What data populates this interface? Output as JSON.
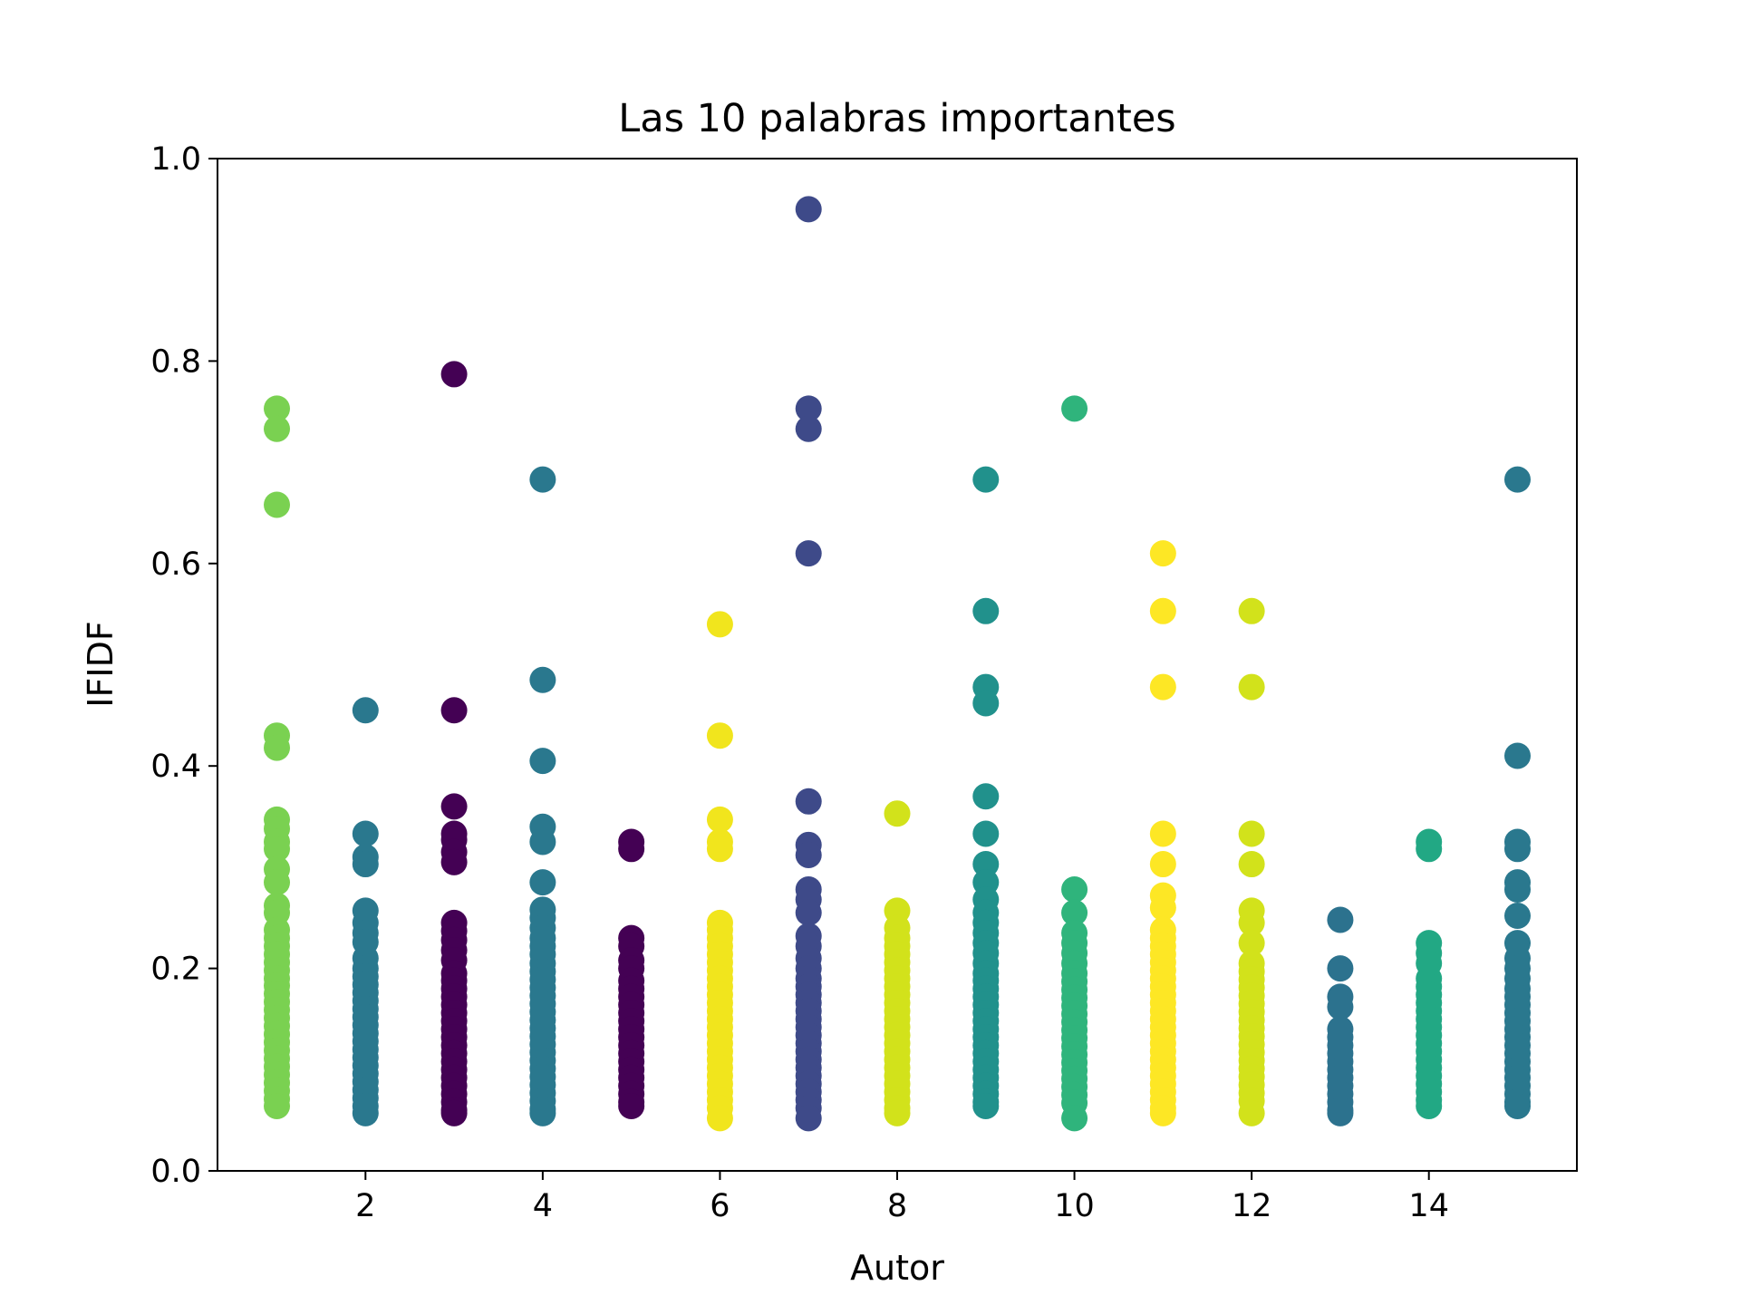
{
  "chart_data": {
    "type": "scatter",
    "title": "Las 10 palabras importantes",
    "xlabel": "Autor",
    "ylabel": "IFIDF",
    "xlim": [
      0.33,
      15.67
    ],
    "ylim": [
      0.0,
      1.0
    ],
    "x_ticks": [
      "2",
      "4",
      "6",
      "8",
      "10",
      "12",
      "14"
    ],
    "y_ticks": [
      "0.0",
      "0.2",
      "0.4",
      "0.6",
      "0.8",
      "1.0"
    ],
    "grid": false,
    "legend": "none",
    "series": [
      {
        "x": 1,
        "color": "#7ad151",
        "values": [
          0.753,
          0.733,
          0.658,
          0.43,
          0.418,
          0.347,
          0.338,
          0.325,
          0.318,
          0.298,
          0.285,
          0.262,
          0.255,
          0.238,
          0.23,
          0.222,
          0.214,
          0.206,
          0.198,
          0.19,
          0.183,
          0.175,
          0.167,
          0.159,
          0.151,
          0.143,
          0.135,
          0.127,
          0.119,
          0.111,
          0.103,
          0.095,
          0.087,
          0.079,
          0.071,
          0.064
        ]
      },
      {
        "x": 2,
        "color": "#2a788e",
        "values": [
          0.455,
          0.333,
          0.31,
          0.303,
          0.257,
          0.245,
          0.235,
          0.226,
          0.21,
          0.2,
          0.192,
          0.184,
          0.176,
          0.168,
          0.16,
          0.152,
          0.144,
          0.136,
          0.128,
          0.12,
          0.112,
          0.104,
          0.096,
          0.088,
          0.08,
          0.072,
          0.064,
          0.057
        ]
      },
      {
        "x": 3,
        "color": "#440154",
        "values": [
          0.787,
          0.455,
          0.36,
          0.333,
          0.327,
          0.315,
          0.305,
          0.245,
          0.237,
          0.228,
          0.218,
          0.208,
          0.195,
          0.188,
          0.18,
          0.172,
          0.164,
          0.156,
          0.148,
          0.14,
          0.132,
          0.124,
          0.116,
          0.108,
          0.1,
          0.092,
          0.084,
          0.076,
          0.068,
          0.06,
          0.057
        ]
      },
      {
        "x": 4,
        "color": "#2a788e",
        "values": [
          0.683,
          0.485,
          0.405,
          0.34,
          0.325,
          0.285,
          0.258,
          0.25,
          0.24,
          0.23,
          0.222,
          0.214,
          0.205,
          0.197,
          0.189,
          0.181,
          0.173,
          0.165,
          0.157,
          0.149,
          0.141,
          0.133,
          0.125,
          0.117,
          0.109,
          0.101,
          0.093,
          0.085,
          0.077,
          0.069,
          0.061,
          0.057
        ]
      },
      {
        "x": 5,
        "color": "#440154",
        "values": [
          0.325,
          0.318,
          0.23,
          0.222,
          0.208,
          0.2,
          0.188,
          0.18,
          0.172,
          0.164,
          0.156,
          0.148,
          0.14,
          0.132,
          0.124,
          0.116,
          0.108,
          0.1,
          0.092,
          0.084,
          0.076,
          0.068,
          0.064
        ]
      },
      {
        "x": 6,
        "color": "#f1e51d",
        "values": [
          0.54,
          0.43,
          0.347,
          0.325,
          0.318,
          0.245,
          0.238,
          0.23,
          0.222,
          0.214,
          0.206,
          0.198,
          0.19,
          0.182,
          0.174,
          0.166,
          0.158,
          0.15,
          0.142,
          0.134,
          0.126,
          0.118,
          0.11,
          0.102,
          0.094,
          0.086,
          0.078,
          0.07,
          0.062,
          0.052
        ]
      },
      {
        "x": 7,
        "color": "#3e4a89",
        "values": [
          0.95,
          0.753,
          0.733,
          0.61,
          0.365,
          0.322,
          0.312,
          0.278,
          0.268,
          0.255,
          0.232,
          0.222,
          0.21,
          0.2,
          0.19,
          0.182,
          0.174,
          0.166,
          0.158,
          0.15,
          0.142,
          0.134,
          0.126,
          0.118,
          0.11,
          0.102,
          0.094,
          0.086,
          0.078,
          0.07,
          0.062,
          0.052
        ]
      },
      {
        "x": 8,
        "color": "#d2e21b",
        "values": [
          0.353,
          0.257,
          0.24,
          0.23,
          0.222,
          0.214,
          0.206,
          0.198,
          0.19,
          0.182,
          0.174,
          0.166,
          0.158,
          0.15,
          0.142,
          0.134,
          0.126,
          0.118,
          0.11,
          0.102,
          0.094,
          0.086,
          0.078,
          0.07,
          0.062,
          0.057
        ]
      },
      {
        "x": 9,
        "color": "#21918c",
        "values": [
          0.683,
          0.553,
          0.478,
          0.462,
          0.37,
          0.333,
          0.303,
          0.285,
          0.268,
          0.255,
          0.245,
          0.235,
          0.225,
          0.215,
          0.205,
          0.195,
          0.188,
          0.18,
          0.172,
          0.164,
          0.156,
          0.148,
          0.14,
          0.132,
          0.124,
          0.116,
          0.108,
          0.1,
          0.092,
          0.084,
          0.076,
          0.068,
          0.064
        ]
      },
      {
        "x": 10,
        "color": "#2fb47c",
        "values": [
          0.753,
          0.278,
          0.255,
          0.235,
          0.225,
          0.215,
          0.205,
          0.195,
          0.187,
          0.179,
          0.171,
          0.163,
          0.155,
          0.147,
          0.139,
          0.131,
          0.123,
          0.115,
          0.107,
          0.099,
          0.091,
          0.083,
          0.075,
          0.067,
          0.052
        ]
      },
      {
        "x": 11,
        "color": "#fde725",
        "values": [
          0.61,
          0.553,
          0.478,
          0.333,
          0.303,
          0.272,
          0.26,
          0.238,
          0.23,
          0.222,
          0.214,
          0.206,
          0.198,
          0.19,
          0.182,
          0.174,
          0.166,
          0.158,
          0.15,
          0.142,
          0.134,
          0.126,
          0.118,
          0.11,
          0.102,
          0.094,
          0.086,
          0.078,
          0.07,
          0.062,
          0.057
        ]
      },
      {
        "x": 12,
        "color": "#d2e21b",
        "values": [
          0.553,
          0.478,
          0.333,
          0.303,
          0.257,
          0.245,
          0.225,
          0.205,
          0.197,
          0.189,
          0.181,
          0.173,
          0.165,
          0.157,
          0.149,
          0.141,
          0.133,
          0.125,
          0.117,
          0.109,
          0.101,
          0.093,
          0.085,
          0.077,
          0.069,
          0.057
        ]
      },
      {
        "x": 13,
        "color": "#2c728e",
        "values": [
          0.248,
          0.2,
          0.172,
          0.162,
          0.14,
          0.132,
          0.124,
          0.116,
          0.108,
          0.1,
          0.092,
          0.084,
          0.076,
          0.068,
          0.06,
          0.057
        ]
      },
      {
        "x": 14,
        "color": "#22a884",
        "values": [
          0.325,
          0.318,
          0.225,
          0.215,
          0.205,
          0.19,
          0.182,
          0.174,
          0.166,
          0.158,
          0.15,
          0.142,
          0.134,
          0.126,
          0.118,
          0.11,
          0.102,
          0.094,
          0.086,
          0.078,
          0.07,
          0.064
        ]
      },
      {
        "x": 15,
        "color": "#2a788e",
        "values": [
          0.683,
          0.41,
          0.325,
          0.318,
          0.285,
          0.278,
          0.252,
          0.225,
          0.21,
          0.2,
          0.19,
          0.18,
          0.172,
          0.164,
          0.156,
          0.148,
          0.14,
          0.132,
          0.124,
          0.116,
          0.108,
          0.1,
          0.092,
          0.084,
          0.076,
          0.068,
          0.064
        ]
      }
    ]
  }
}
